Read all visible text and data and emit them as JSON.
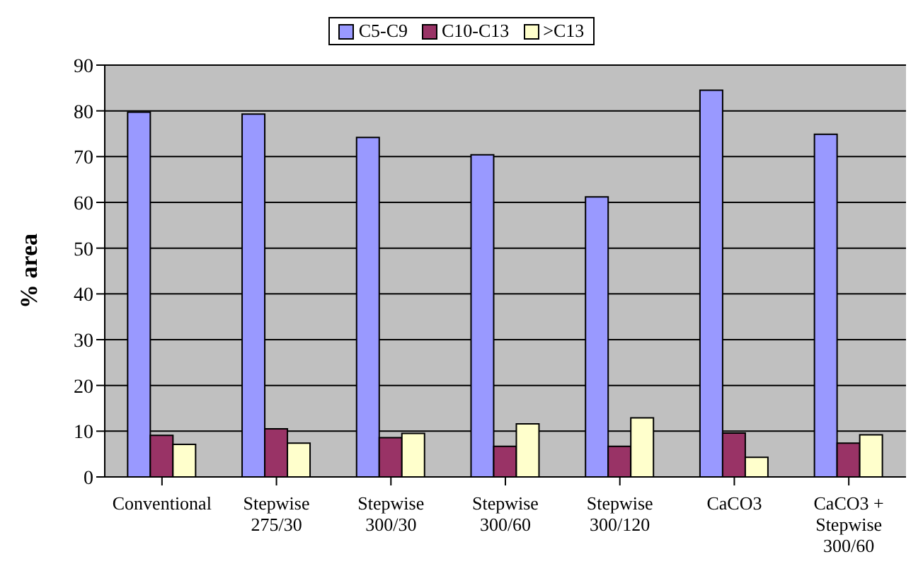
{
  "chart_data": {
    "type": "bar",
    "ylabel": "% area",
    "categories": [
      "Conventional",
      "Stepwise\n275/30",
      "Stepwise\n300/30",
      "Stepwise\n300/60",
      "Stepwise\n300/120",
      "CaCO3",
      "CaCO3 +\nStepwise\n300/60"
    ],
    "series": [
      {
        "name": "C5-C9",
        "color": "#9999ff",
        "values": [
          79.7,
          79.3,
          74.2,
          70.4,
          61.2,
          84.5,
          74.9
        ]
      },
      {
        "name": "C10-C13",
        "color": "#993366",
        "values": [
          9.1,
          10.5,
          8.6,
          6.7,
          6.7,
          9.6,
          7.4
        ]
      },
      {
        "name": ">C13",
        "color": "#ffffcc",
        "values": [
          7.1,
          7.4,
          9.5,
          11.6,
          12.9,
          4.3,
          9.2
        ]
      }
    ],
    "ylim": [
      0,
      90
    ],
    "yticks": [
      0,
      10,
      20,
      30,
      40,
      50,
      60,
      70,
      80,
      90
    ],
    "grid": "y",
    "legend": "top"
  }
}
